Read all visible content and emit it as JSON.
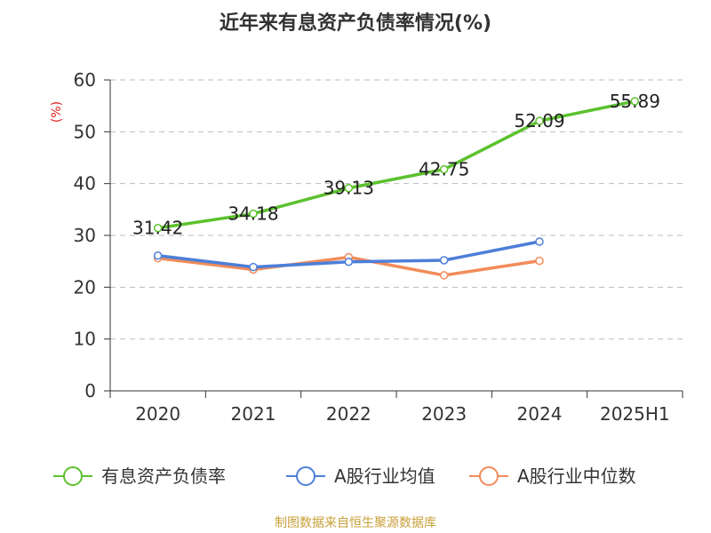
{
  "chart_data": {
    "type": "line",
    "title": "近年来有息资产负债率情况(%)",
    "ylabel": "(%)",
    "xlabel": "",
    "categories": [
      "2020",
      "2021",
      "2022",
      "2023",
      "2024",
      "2025H1"
    ],
    "ylim": [
      0,
      60
    ],
    "yticks": [
      0,
      10,
      20,
      30,
      40,
      50,
      60
    ],
    "grid": "horizontal dashed",
    "legend_position": "bottom",
    "series": [
      {
        "name": "有息资产负债率",
        "color": "#5cc12e",
        "values": [
          31.42,
          34.18,
          39.13,
          42.75,
          52.09,
          55.89
        ],
        "labels": [
          "31.42",
          "34.18",
          "39.13",
          "42.75",
          "52.09",
          "55.89"
        ],
        "show_labels": true
      },
      {
        "name": "A股行业均值",
        "color": "#4d7fd9",
        "values": [
          26.1,
          23.9,
          24.9,
          25.2,
          28.8,
          null
        ],
        "show_labels": false
      },
      {
        "name": "A股行业中位数",
        "color": "#f28c5a",
        "values": [
          25.6,
          23.4,
          25.8,
          22.3,
          25.1,
          null
        ],
        "show_labels": false
      }
    ]
  },
  "source": "制图数据来自恒生聚源数据库"
}
